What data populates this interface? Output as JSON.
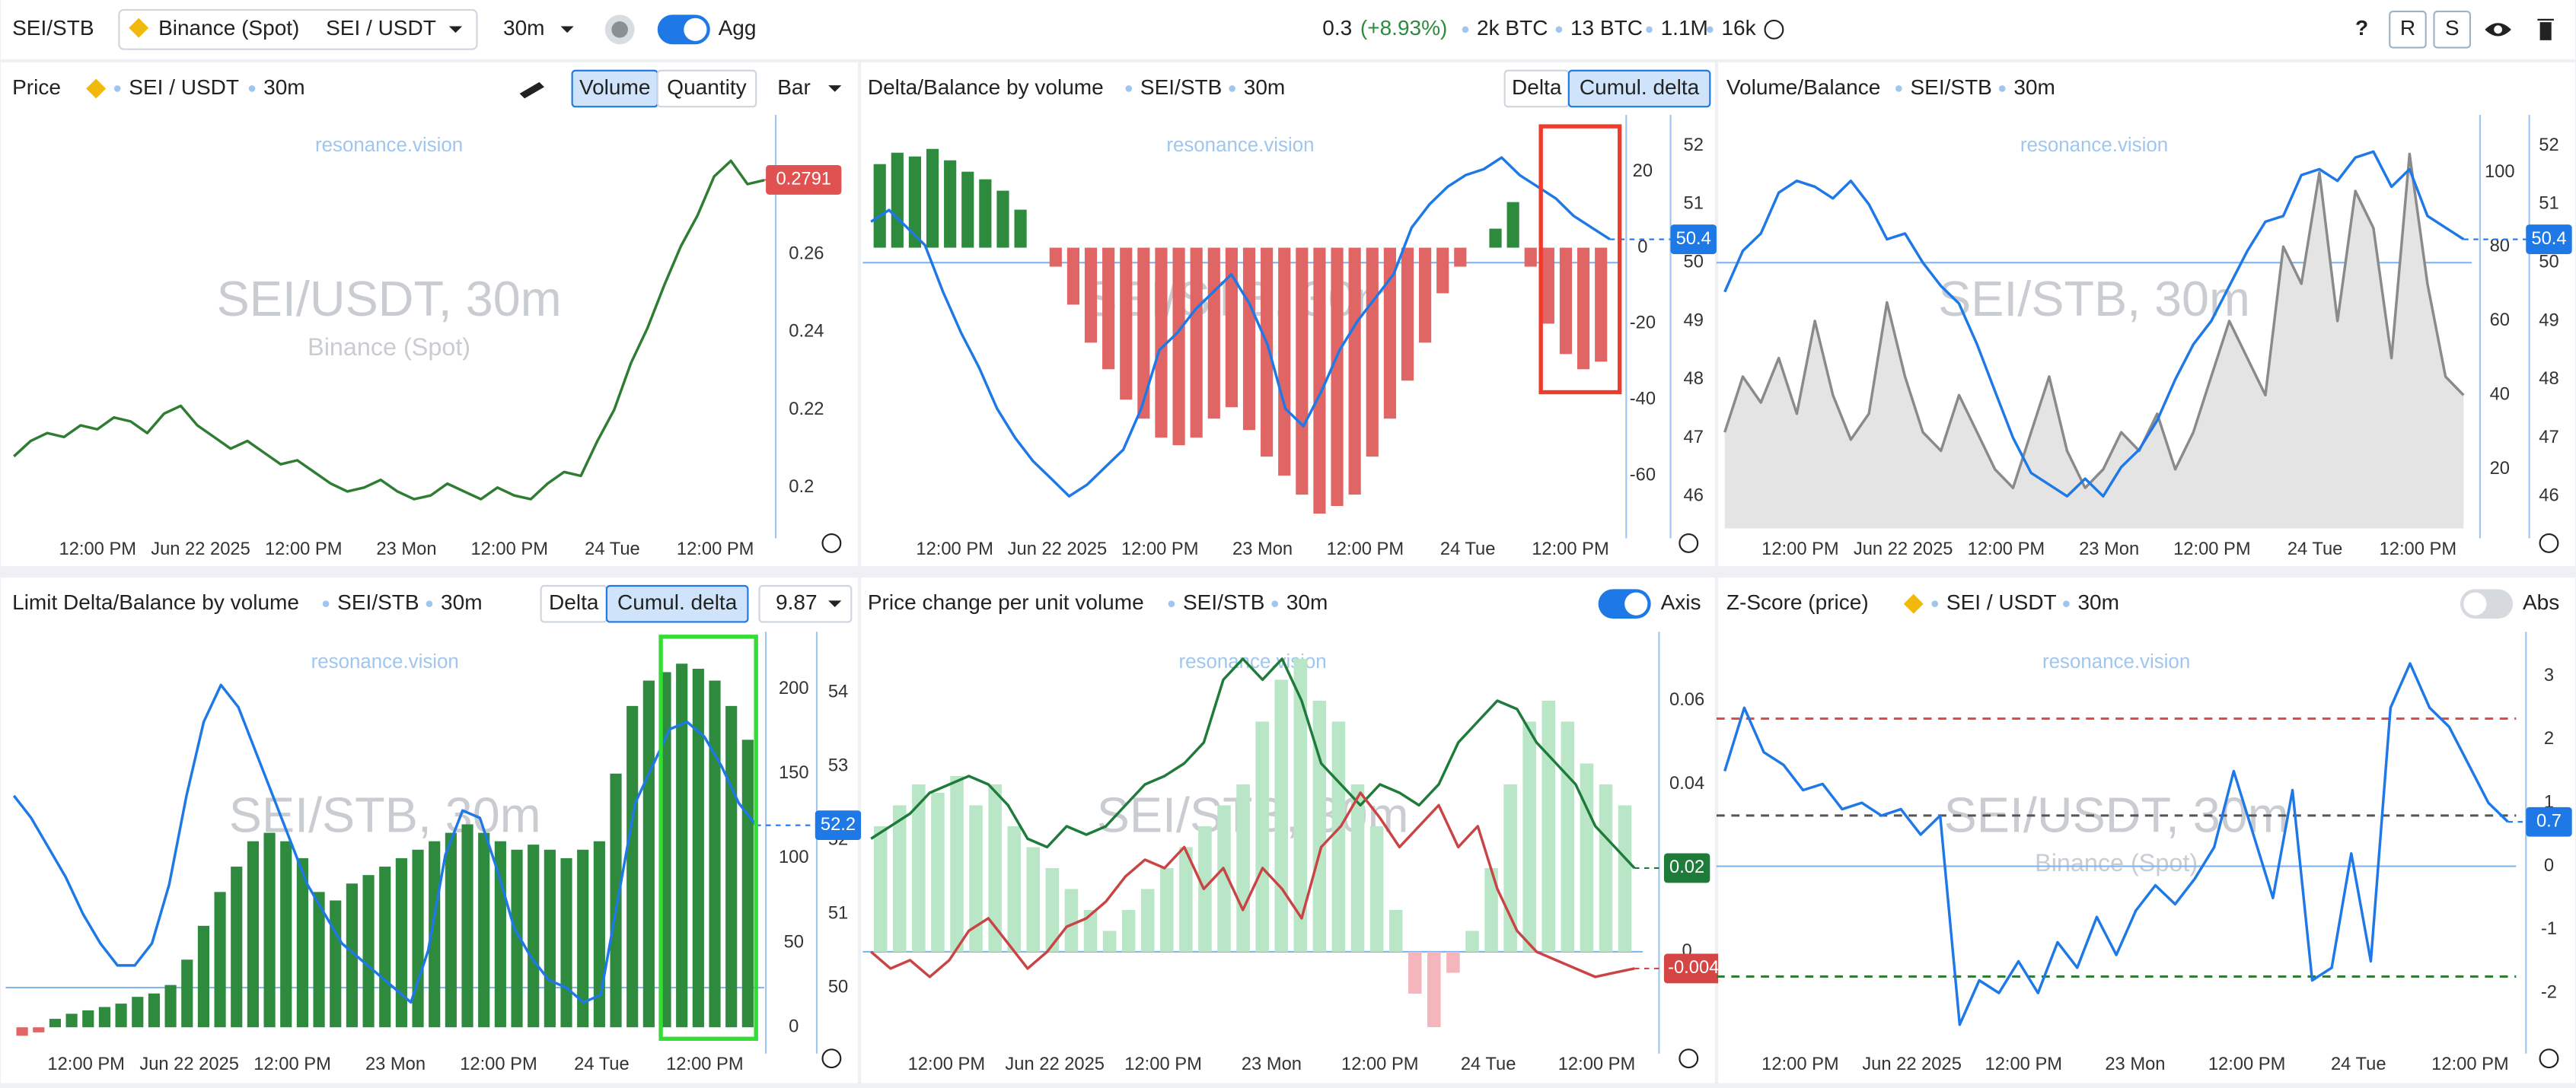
{
  "toolbar": {
    "pair": "SEI/STB",
    "exchange": "Binance (Spot)",
    "symbol": "SEI / USDT",
    "interval": "30m",
    "agg": "Agg",
    "price": "0.3",
    "change": "(+8.93%)",
    "stats": [
      "2k BTC",
      "13 BTC",
      "1.1M",
      "16k"
    ],
    "help": "?",
    "buttons": [
      "R",
      "S"
    ]
  },
  "time_axis": [
    "12:00 PM",
    "Jun 22 2025",
    "12:00 PM",
    "23 Mon",
    "12:00 PM",
    "24 Tue",
    "12:00 PM"
  ],
  "panels": [
    {
      "header": [
        "Price",
        "SEI / USDT",
        "30m"
      ],
      "buttons": [
        "Volume",
        "Quantity",
        "Bar"
      ],
      "watermark": [
        "resonance.vision",
        "SEI/USDT, 30m",
        "Binance (Spot)"
      ],
      "chart": {
        "type": "line",
        "ylim": [
          0.1895,
          0.2937
        ],
        "yticks": [
          0.2,
          0.22,
          0.24,
          0.26
        ],
        "series": [
          {
            "type": "line",
            "color": "#2e7d32",
            "values": [
              0.208,
              0.212,
              0.214,
              0.213,
              0.216,
              0.215,
              0.218,
              0.217,
              0.214,
              0.219,
              0.221,
              0.216,
              0.213,
              0.21,
              0.212,
              0.209,
              0.206,
              0.207,
              0.204,
              0.201,
              0.199,
              0.2,
              0.202,
              0.199,
              0.197,
              0.198,
              0.201,
              0.199,
              0.197,
              0.2,
              0.198,
              0.197,
              0.201,
              0.204,
              0.203,
              0.212,
              0.22,
              0.232,
              0.241,
              0.252,
              0.262,
              0.27,
              0.28,
              0.284,
              0.278,
              0.279
            ]
          }
        ],
        "last_labels": [
          {
            "value": 0.2791,
            "color": "#e05252",
            "axis": "y"
          }
        ]
      }
    },
    {
      "header": [
        "Delta/Balance by volume",
        "SEI/STB",
        "30m"
      ],
      "buttons": [
        "Delta",
        "Cumul. delta"
      ],
      "watermark": [
        "resonance.vision",
        "SEI/STB, 30m"
      ],
      "chart": {
        "type": "bar",
        "ylim": [
          -73.9,
          32.8
        ],
        "yticks": [
          20,
          0,
          -20,
          -40,
          -60
        ],
        "y2lim": [
          45.45,
          52.39
        ],
        "y2ticks": [
          52,
          51,
          50,
          49,
          48,
          47,
          46
        ],
        "series": [
          {
            "type": "bar",
            "color": "#2e8b3e",
            "negative_color": "#e06666",
            "values": [
              22,
              25,
              24,
              26,
              23,
              20,
              18,
              15,
              10,
              0,
              -5,
              -15,
              -25,
              -32,
              -40,
              -45,
              -50,
              -52,
              -50,
              -45,
              -42,
              -48,
              -55,
              -60,
              -65,
              -70,
              -68,
              -65,
              -55,
              -45,
              -35,
              -25,
              -12,
              -5,
              0,
              5,
              12,
              -5,
              -20,
              -28,
              -32,
              -30
            ]
          },
          {
            "type": "line",
            "axis": "y2",
            "color": "#1e78e6",
            "values": [
              50.7,
              50.9,
              50.6,
              50.3,
              49.5,
              48.8,
              48.2,
              47.5,
              47,
              46.6,
              46.3,
              46,
              46.2,
              46.5,
              46.8,
              47.5,
              48.5,
              48.8,
              49.2,
              49.5,
              49.8,
              49.3,
              48.6,
              47.5,
              47.2,
              47.8,
              48.5,
              49,
              49.4,
              49.8,
              50.6,
              51,
              51.3,
              51.5,
              51.6,
              51.8,
              51.5,
              51.3,
              51.1,
              50.8,
              50.6,
              50.4
            ]
          }
        ],
        "reference_lines": [
          {
            "value": 50,
            "axis": "y2",
            "color": "#7fb6f0"
          }
        ],
        "last_labels": [
          {
            "value": 50.4,
            "color": "#1e78e6",
            "axis": "y2"
          }
        ]
      }
    },
    {
      "header": [
        "Volume/Balance",
        "SEI/STB",
        "30m"
      ],
      "buttons": [],
      "watermark": [
        "resonance.vision",
        "SEI/STB, 30m"
      ],
      "chart": {
        "type": "line",
        "ylim": [
          4.1,
          113.3
        ],
        "yticks": [
          100,
          80,
          60,
          40,
          20
        ],
        "y2lim": [
          45.45,
          52.39
        ],
        "y2ticks": [
          52,
          51,
          50,
          49,
          48,
          47,
          46
        ],
        "series": [
          {
            "type": "area",
            "color": "#8a8a8a",
            "values": [
              30,
              45,
              38,
              50,
              35,
              60,
              40,
              28,
              35,
              65,
              45,
              30,
              25,
              40,
              30,
              20,
              15,
              30,
              45,
              25,
              15,
              20,
              30,
              25,
              35,
              20,
              30,
              45,
              60,
              50,
              40,
              80,
              70,
              100,
              60,
              95,
              85,
              50,
              105,
              70,
              45,
              40
            ]
          },
          {
            "type": "line",
            "axis": "y2",
            "color": "#1e78e6",
            "values": [
              49.5,
              50.2,
              50.5,
              51.2,
              51.4,
              51.3,
              51.1,
              51.4,
              51,
              50.4,
              50.5,
              50,
              49.6,
              49.3,
              48.6,
              47.8,
              47,
              46.4,
              46.2,
              46,
              46.3,
              46,
              46.5,
              46.8,
              47.3,
              48,
              48.6,
              49,
              49.6,
              50.2,
              50.7,
              50.8,
              51.5,
              51.6,
              51.4,
              51.8,
              51.9,
              51.3,
              51.6,
              50.8,
              50.6,
              50.4
            ]
          }
        ],
        "reference_lines": [
          {
            "value": 50,
            "axis": "y2",
            "color": "#7fb6f0"
          }
        ],
        "last_labels": [
          {
            "value": 50.4,
            "color": "#1e78e6",
            "axis": "y2"
          }
        ]
      }
    },
    {
      "header": [
        "Limit Delta/Balance by volume",
        "SEI/STB",
        "30m"
      ],
      "buttons": [
        "Delta",
        "Cumul. delta",
        "9.87"
      ],
      "watermark": [
        "resonance.vision",
        "SEI/STB, 30m"
      ],
      "chart": {
        "type": "bar",
        "ylim": [
          -9.7,
          229
        ],
        "yticks": [
          200,
          150,
          100,
          50,
          0
        ],
        "y2lim": [
          49.24,
          54.71
        ],
        "y2ticks": [
          54,
          53,
          52,
          51,
          50
        ],
        "series": [
          {
            "type": "bar",
            "color": "#2e8b3e",
            "negative_color": "#e06666",
            "values": [
              -5,
              -3,
              5,
              8,
              10,
              12,
              14,
              18,
              20,
              25,
              40,
              60,
              80,
              95,
              110,
              115,
              110,
              100,
              80,
              75,
              85,
              90,
              95,
              100,
              105,
              110,
              115,
              120,
              115,
              110,
              105,
              108,
              105,
              100,
              105,
              110,
              150,
              190,
              205,
              210,
              215,
              212,
              205,
              190,
              170
            ]
          },
          {
            "type": "line",
            "axis": "y2",
            "color": "#1e78e6",
            "values": [
              52.6,
              52.3,
              51.9,
              51.5,
              51,
              50.6,
              50.3,
              50.3,
              50.6,
              51.4,
              52.6,
              53.6,
              54.1,
              53.8,
              53.2,
              52.6,
              52,
              51.4,
              51,
              50.6,
              50.4,
              50.2,
              50,
              49.8,
              50.5,
              51.8,
              52.4,
              52.3,
              51.6,
              50.8,
              50.4,
              50.1,
              50,
              49.8,
              49.9,
              51.2,
              52.5,
              53,
              53.5,
              53.6,
              53.4,
              53,
              52.5,
              52.2
            ]
          }
        ],
        "reference_lines": [
          {
            "value": 50,
            "axis": "y2",
            "color": "#7fb6f0"
          }
        ],
        "last_labels": [
          {
            "value": 52.2,
            "color": "#1e78e6",
            "axis": "y2"
          }
        ]
      }
    },
    {
      "header": [
        "Price change per unit volume",
        "SEI/STB",
        "30m"
      ],
      "buttons": [
        "Axis"
      ],
      "watermark": [
        "resonance.vision",
        "SEI/STB, 30m"
      ],
      "chart": {
        "type": "bar",
        "ylim": [
          -0.02196,
          0.0745
        ],
        "yticks": [
          0.06,
          0.04,
          0.02,
          0
        ],
        "series": [
          {
            "type": "bar",
            "color": "#b9e6c6",
            "negative_color": "#f5b5bd",
            "values": [
              0.03,
              0.035,
              0.04,
              0.038,
              0.042,
              0.035,
              0.04,
              0.03,
              0.025,
              0.02,
              0.015,
              0.01,
              0.005,
              0.01,
              0.015,
              0.02,
              0.025,
              0.03,
              0.035,
              0.04,
              0.055,
              0.065,
              0.07,
              0.06,
              0.055,
              0.04,
              0.03,
              0.01,
              -0.01,
              -0.018,
              -0.005,
              0.005,
              0.02,
              0.04,
              0.055,
              0.06,
              0.055,
              0.045,
              0.04,
              0.035
            ]
          },
          {
            "type": "line",
            "color": "#1e7b3a",
            "values": [
              0.027,
              0.03,
              0.033,
              0.038,
              0.04,
              0.042,
              0.04,
              0.035,
              0.027,
              0.025,
              0.03,
              0.028,
              0.03,
              0.035,
              0.04,
              0.042,
              0.045,
              0.05,
              0.065,
              0.07,
              0.065,
              0.07,
              0.06,
              0.045,
              0.04,
              0.035,
              0.04,
              0.038,
              0.035,
              0.04,
              0.05,
              0.055,
              0.06,
              0.058,
              0.05,
              0.045,
              0.04,
              0.03,
              0.025,
              0.02
            ]
          },
          {
            "type": "line",
            "color": "#c94444",
            "values": [
              0,
              -0.004,
              -0.002,
              -0.006,
              -0.002,
              0.005,
              0.008,
              0.002,
              -0.004,
              0,
              0.006,
              0.008,
              0.012,
              0.018,
              0.022,
              0.02,
              0.025,
              0.015,
              0.02,
              0.01,
              0.02,
              0.015,
              0.008,
              0.025,
              0.03,
              0.038,
              0.032,
              0.025,
              0.03,
              0.035,
              0.025,
              0.03,
              0.015,
              0.005,
              0,
              -0.002,
              -0.004,
              -0.006,
              -0.005,
              -0.004
            ]
          }
        ],
        "reference_lines": [
          {
            "value": 0,
            "axis": "y",
            "color": "#7fb6f0"
          }
        ],
        "last_labels": [
          {
            "value": 0.02,
            "color": "#1e7b3a",
            "axis": "y"
          },
          {
            "value": -0.004,
            "color": "#d64545",
            "axis": "y"
          }
        ]
      }
    },
    {
      "header": [
        "Z-Score (price)",
        "SEI / USDT",
        "30m"
      ],
      "buttons": [
        "Abs"
      ],
      "watermark": [
        "resonance.vision",
        "SEI/USDT, 30m",
        "Binance (Spot)"
      ],
      "chart": {
        "type": "line",
        "ylim": [
          -2.8,
          3.57
        ],
        "yticks": [
          3,
          2,
          1,
          0,
          -1,
          -2
        ],
        "series": [
          {
            "type": "line",
            "color": "#1e78e6",
            "values": [
              1.5,
              2.5,
              1.8,
              1.6,
              1.2,
              1.3,
              0.9,
              1,
              0.8,
              0.9,
              0.5,
              0.8,
              -2.5,
              -1.8,
              -2,
              -1.5,
              -2,
              -1.2,
              -1.6,
              -0.8,
              -1.4,
              -0.7,
              -0.3,
              -0.6,
              -0.2,
              0.3,
              1.5,
              0.5,
              -0.5,
              1.2,
              -1.8,
              -1.6,
              0.2,
              -1.5,
              2.5,
              3.2,
              2.5,
              2.2,
              1.6,
              1,
              0.7
            ]
          }
        ],
        "reference_lines": [
          {
            "value": 0,
            "axis": "y",
            "color": "#7fb6f0"
          },
          {
            "value": 2.33,
            "axis": "y",
            "color": "#e04a4a",
            "dash": true
          },
          {
            "value": 0.8,
            "axis": "y",
            "color": "#555555",
            "dash": true
          },
          {
            "value": -1.74,
            "axis": "y",
            "color": "#2e7d32",
            "dash": true
          }
        ],
        "last_labels": [
          {
            "value": 0.7,
            "color": "#1e78e6",
            "axis": "y"
          }
        ]
      }
    }
  ]
}
